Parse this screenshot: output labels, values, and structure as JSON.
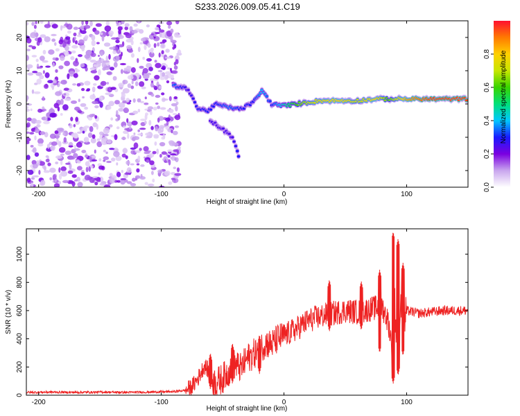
{
  "title": "S233.2026.009.05.41.C19",
  "chart_data": [
    {
      "type": "heatmap",
      "xlabel": "Height of straight line (km)",
      "ylabel": "Frequency (Hz)",
      "xlim": [
        -210,
        150
      ],
      "ylim": [
        -25,
        25
      ],
      "xticks": [
        -200,
        -100,
        0,
        100
      ],
      "yticks": [
        -20,
        -10,
        0,
        10,
        20
      ],
      "colorbar": {
        "label": "Normalized spectral amplitude",
        "range": [
          0.0,
          1.0
        ],
        "ticks": [
          0.0,
          0.2,
          0.4,
          0.6,
          0.8
        ],
        "tick_labels": [
          "0.0",
          "0.2",
          "0.4",
          "0.6",
          "0.8"
        ],
        "colors": [
          "#ffffff",
          "#c9a6ee",
          "#7a00e0",
          "#1a1aff",
          "#00c8ff",
          "#00e07a",
          "#38d400",
          "#c8e600",
          "#ffd000",
          "#ff7a00",
          "#ff1030"
        ]
      },
      "noise_region_x": [
        -210,
        -85
      ],
      "ridge": [
        {
          "x": -90,
          "f": 5.5,
          "a": 0.35
        },
        {
          "x": -78,
          "f": 4.5,
          "a": 0.25
        },
        {
          "x": -70,
          "f": -1.5,
          "a": 0.3
        },
        {
          "x": -62,
          "f": -2.0,
          "a": 0.3
        },
        {
          "x": -55,
          "f": 0.0,
          "a": 0.3
        },
        {
          "x": -45,
          "f": -1.0,
          "a": 0.35
        },
        {
          "x": -35,
          "f": -1.5,
          "a": 0.3
        },
        {
          "x": -25,
          "f": 0.5,
          "a": 0.3
        },
        {
          "x": -18,
          "f": 4.0,
          "a": 0.4
        },
        {
          "x": -10,
          "f": 0.0,
          "a": 0.3
        },
        {
          "x": 0,
          "f": -0.5,
          "a": 0.45
        },
        {
          "x": 10,
          "f": 0.0,
          "a": 0.6
        },
        {
          "x": 20,
          "f": 0.5,
          "a": 0.7
        },
        {
          "x": 30,
          "f": 1.0,
          "a": 0.75
        },
        {
          "x": 45,
          "f": 1.0,
          "a": 0.8
        },
        {
          "x": 60,
          "f": 1.0,
          "a": 0.7
        },
        {
          "x": 75,
          "f": 1.5,
          "a": 0.8
        },
        {
          "x": 85,
          "f": 1.5,
          "a": 0.6
        },
        {
          "x": 100,
          "f": 1.5,
          "a": 0.85
        },
        {
          "x": 120,
          "f": 1.5,
          "a": 0.95
        },
        {
          "x": 150,
          "f": 1.5,
          "a": 0.95
        }
      ],
      "branch": [
        {
          "x": -60,
          "f": -5.0,
          "a": 0.25
        },
        {
          "x": -52,
          "f": -7.0,
          "a": 0.25
        },
        {
          "x": -42,
          "f": -10.0,
          "a": 0.25
        },
        {
          "x": -38,
          "f": -14.0,
          "a": 0.3
        },
        {
          "x": -36,
          "f": -17.0,
          "a": 0.3
        }
      ]
    },
    {
      "type": "line",
      "xlabel": "Height of straight line (km)",
      "ylabel": "SNR (10 * v/v)",
      "xlim": [
        -210,
        150
      ],
      "ylim": [
        0,
        1180
      ],
      "xticks": [
        -200,
        -100,
        0,
        100
      ],
      "yticks": [
        0,
        200,
        400,
        600,
        800,
        1000
      ],
      "color": "#ee2222",
      "series": [
        {
          "name": "SNR",
          "x": [
            -210,
            -190,
            -170,
            -150,
            -130,
            -110,
            -90,
            -80,
            -75,
            -70,
            -65,
            -62,
            -60,
            -55,
            -50,
            -45,
            -40,
            -35,
            -30,
            -25,
            -20,
            -15,
            -10,
            -5,
            0,
            10,
            20,
            30,
            40,
            50,
            60,
            70,
            80,
            85,
            88,
            90,
            92,
            95,
            98,
            100,
            110,
            120,
            130,
            140,
            150
          ],
          "values": [
            20,
            22,
            20,
            22,
            20,
            22,
            25,
            35,
            60,
            120,
            210,
            180,
            110,
            90,
            120,
            170,
            220,
            190,
            260,
            290,
            330,
            370,
            360,
            400,
            420,
            470,
            530,
            560,
            580,
            600,
            590,
            610,
            630,
            520,
            360,
            680,
            380,
            700,
            500,
            600,
            580,
            590,
            600,
            600,
            600
          ]
        }
      ],
      "spikes": [
        {
          "x": -60,
          "min": 40,
          "max": 300
        },
        {
          "x": -42,
          "min": 80,
          "max": 370
        },
        {
          "x": -20,
          "min": 150,
          "max": 430
        },
        {
          "x": 37,
          "min": 450,
          "max": 820
        },
        {
          "x": 63,
          "min": 460,
          "max": 810
        },
        {
          "x": 78,
          "min": 300,
          "max": 890
        },
        {
          "x": 89,
          "min": 80,
          "max": 1160
        },
        {
          "x": 93,
          "min": 140,
          "max": 1110
        },
        {
          "x": 97,
          "min": 280,
          "max": 940
        }
      ]
    }
  ]
}
